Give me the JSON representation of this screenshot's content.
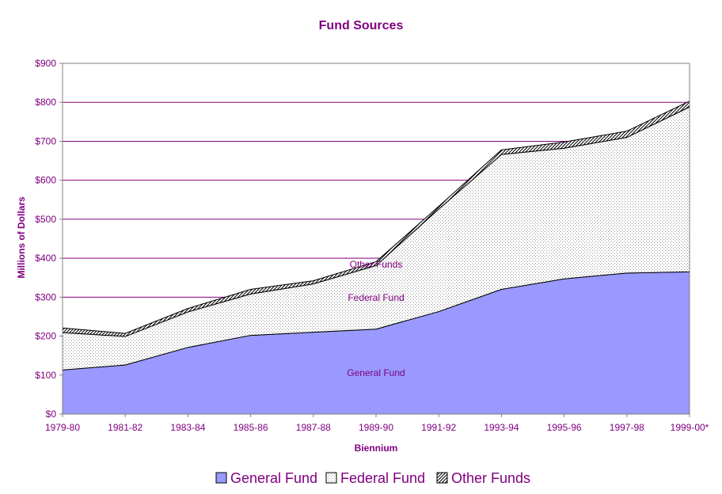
{
  "chart_data": {
    "type": "area",
    "stacked": true,
    "title": "Fund Sources",
    "xlabel": "Biennium",
    "ylabel": "Millions of Dollars",
    "categories": [
      "1979-80",
      "1981-82",
      "1983-84",
      "1985-86",
      "1987-88",
      "1989-90",
      "1991-92",
      "1993-94",
      "1995-96",
      "1997-98",
      "1999-00*"
    ],
    "ylim": [
      0,
      900
    ],
    "yticks": [
      "$0",
      "$100",
      "$200",
      "$300",
      "$400",
      "$500",
      "$600",
      "$700",
      "$800",
      "$900"
    ],
    "grid": true,
    "legend_position": "bottom",
    "series": [
      {
        "name": "General Fund",
        "values": [
          113,
          126,
          171,
          202,
          210,
          218,
          263,
          320,
          347,
          362,
          365
        ],
        "color": "#9999ff",
        "pattern": "solid"
      },
      {
        "name": "Federal Fund",
        "values": [
          96,
          73,
          91,
          106,
          124,
          163,
          263,
          346,
          335,
          348,
          423
        ],
        "color": "#c0c0c0",
        "pattern": "dots"
      },
      {
        "name": "Other Funds",
        "values": [
          12,
          8,
          9,
          12,
          8,
          10,
          7,
          12,
          16,
          16,
          15
        ],
        "color": "#000000",
        "pattern": "diagonal"
      }
    ],
    "in_chart_labels": [
      "General Fund",
      "Federal Fund",
      "Other Funds"
    ]
  }
}
